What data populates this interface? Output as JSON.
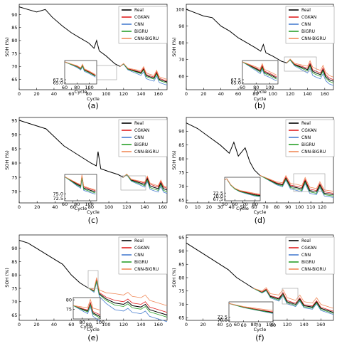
{
  "legend_colors": {
    "Real": "#000000",
    "CGKAN": "#e02020",
    "CNN": "#4a7fd0",
    "BiGRU": "#2aa02a",
    "CNN-BiGRU": "#f08a5a"
  },
  "chart_data": [
    {
      "panel": "(a)",
      "type": "line",
      "xlabel": "Cycle",
      "ylabel": "SOH (%)",
      "xlim": [
        0,
        170
      ],
      "ylim": [
        61,
        94
      ],
      "xticks": [
        0,
        20,
        40,
        60,
        80,
        100,
        120,
        140,
        160
      ],
      "yticks": [
        65,
        70,
        75,
        80,
        85,
        90
      ],
      "legend": [
        "Real",
        "CGKAN",
        "CNN",
        "BiGRU",
        "CNN-BiGRU"
      ],
      "pred_start": 116,
      "real": [
        [
          0,
          93
        ],
        [
          10,
          92
        ],
        [
          20,
          91
        ],
        [
          30,
          92
        ],
        [
          38,
          89
        ],
        [
          50,
          85.5
        ],
        [
          60,
          83
        ],
        [
          70,
          81
        ],
        [
          80,
          79
        ],
        [
          86,
          77
        ],
        [
          89,
          80
        ],
        [
          92,
          76
        ],
        [
          100,
          74
        ],
        [
          110,
          71
        ],
        [
          116,
          70
        ],
        [
          120,
          71
        ],
        [
          125,
          69
        ],
        [
          130,
          68.5
        ],
        [
          135,
          68
        ],
        [
          140,
          67.5
        ],
        [
          143,
          69
        ],
        [
          146,
          66.5
        ],
        [
          150,
          66
        ],
        [
          155,
          65.5
        ],
        [
          158,
          67.5
        ],
        [
          161,
          65
        ],
        [
          165,
          64.5
        ],
        [
          170,
          64
        ]
      ],
      "offsets": {
        "CGKAN": 0.4,
        "CNN": -1.2,
        "BiGRU": -0.4,
        "CNN-BiGRU": 1.0
      },
      "inset": {
        "xlim": [
          60,
          112
        ],
        "yticks": [
          65.0,
          67.5
        ],
        "xticks": [
          60,
          80,
          100
        ],
        "xlabel": "Cycle"
      }
    },
    {
      "panel": "(b)",
      "type": "line",
      "xlabel": "Cycle",
      "ylabel": "SOH (%)",
      "xlim": [
        0,
        170
      ],
      "ylim": [
        52,
        103
      ],
      "xticks": [
        0,
        20,
        40,
        60,
        80,
        100,
        120,
        140,
        160
      ],
      "yticks": [
        60,
        70,
        80,
        90,
        100
      ],
      "legend": [
        "Real",
        "CGKAN",
        "CNN",
        "BiGRU",
        "CNN-BiGRU"
      ],
      "pred_start": 116,
      "real": [
        [
          0,
          100
        ],
        [
          10,
          98
        ],
        [
          20,
          96
        ],
        [
          30,
          95
        ],
        [
          40,
          90
        ],
        [
          50,
          87
        ],
        [
          60,
          83
        ],
        [
          70,
          80
        ],
        [
          80,
          77
        ],
        [
          86,
          75
        ],
        [
          89,
          79
        ],
        [
          92,
          74
        ],
        [
          100,
          72
        ],
        [
          110,
          69
        ],
        [
          116,
          68
        ],
        [
          120,
          70
        ],
        [
          125,
          67
        ],
        [
          130,
          66
        ],
        [
          135,
          65
        ],
        [
          140,
          64
        ],
        [
          143,
          67
        ],
        [
          146,
          63
        ],
        [
          150,
          62
        ],
        [
          155,
          61
        ],
        [
          158,
          64
        ],
        [
          161,
          60
        ],
        [
          165,
          58
        ],
        [
          170,
          57
        ]
      ],
      "offsets": {
        "CGKAN": 1.0,
        "CNN": -2.5,
        "BiGRU": -1.0,
        "CNN-BiGRU": 2.5
      },
      "inset": {
        "xlim": [
          60,
          112
        ],
        "yticks": [
          65.0,
          67.5
        ],
        "xticks": [
          60,
          80,
          100
        ],
        "xlabel": "Cycle"
      }
    },
    {
      "panel": "(c)",
      "type": "line",
      "xlabel": "Cycle",
      "ylabel": "SOH (%)",
      "xlim": [
        0,
        165
      ],
      "ylim": [
        66,
        96
      ],
      "xticks": [
        0,
        20,
        40,
        60,
        80,
        100,
        120,
        140,
        160
      ],
      "yticks": [
        70,
        75,
        80,
        85,
        90,
        95
      ],
      "legend": [
        "Real",
        "CGKAN",
        "CNN",
        "BiGRU",
        "CNN-BiGRU"
      ],
      "pred_start": 116,
      "real": [
        [
          0,
          95
        ],
        [
          10,
          94
        ],
        [
          20,
          93
        ],
        [
          30,
          92
        ],
        [
          40,
          89
        ],
        [
          50,
          86
        ],
        [
          60,
          84
        ],
        [
          70,
          82
        ],
        [
          80,
          80
        ],
        [
          86,
          79
        ],
        [
          88,
          84
        ],
        [
          91,
          78
        ],
        [
          100,
          77
        ],
        [
          110,
          76
        ],
        [
          116,
          75
        ],
        [
          120,
          76
        ],
        [
          125,
          74
        ],
        [
          130,
          73.5
        ],
        [
          135,
          73
        ],
        [
          140,
          72.5
        ],
        [
          143,
          74.5
        ],
        [
          146,
          72
        ],
        [
          150,
          71.5
        ],
        [
          155,
          71
        ],
        [
          158,
          73
        ],
        [
          161,
          71
        ],
        [
          165,
          70.5
        ]
      ],
      "offsets": {
        "CGKAN": 0.6,
        "CNN": -1.2,
        "BiGRU": -0.6,
        "CNN-BiGRU": 1.0
      },
      "inset": {
        "xlim": [
          60,
          112
        ],
        "yticks": [
          72.5,
          75.0
        ],
        "xticks": [
          60,
          80,
          100
        ],
        "xlabel": "Cycle"
      }
    },
    {
      "panel": "(d)",
      "type": "line",
      "xlabel": "Cycle",
      "ylabel": "SOH (%)",
      "xlim": [
        0,
        130
      ],
      "ylim": [
        64,
        95
      ],
      "xticks": [
        0,
        10,
        20,
        30,
        40,
        50,
        60,
        70,
        80,
        90,
        100,
        110,
        120
      ],
      "yticks": [
        65,
        70,
        75,
        80,
        85,
        90
      ],
      "legend": [
        "Real",
        "CGKAN",
        "CNN",
        "BiGRU",
        "CNN-BiGRU"
      ],
      "pred_start": 65,
      "real": [
        [
          0,
          93
        ],
        [
          10,
          91
        ],
        [
          20,
          88
        ],
        [
          30,
          85
        ],
        [
          38,
          82
        ],
        [
          42,
          86
        ],
        [
          46,
          81
        ],
        [
          52,
          84
        ],
        [
          56,
          79
        ],
        [
          60,
          76
        ],
        [
          65,
          74
        ],
        [
          70,
          73
        ],
        [
          75,
          72
        ],
        [
          80,
          71
        ],
        [
          85,
          70.5
        ],
        [
          88,
          73
        ],
        [
          92,
          70
        ],
        [
          98,
          69.5
        ],
        [
          102,
          69
        ],
        [
          105,
          72
        ],
        [
          109,
          68.5
        ],
        [
          115,
          68
        ],
        [
          118,
          70.5
        ],
        [
          122,
          67.5
        ],
        [
          130,
          67
        ]
      ],
      "offsets": {
        "CGKAN": 0.5,
        "CNN": -1.0,
        "BiGRU": -0.5,
        "CNN-BiGRU": 1.2
      },
      "inset": {
        "xlim": [
          50,
          85
        ],
        "yticks": [
          67.5,
          70.0,
          72.5
        ],
        "xticks": [
          50,
          60,
          70,
          80
        ],
        "xlabel": "Cycle"
      }
    },
    {
      "panel": "(e)",
      "type": "line",
      "xlabel": "Cycle",
      "ylabel": "SOH (%)",
      "xlim": [
        0,
        170
      ],
      "ylim": [
        63,
        95
      ],
      "xticks": [
        0,
        20,
        40,
        60,
        80,
        100,
        120,
        140,
        160
      ],
      "yticks": [
        65,
        70,
        75,
        80,
        85,
        90
      ],
      "legend": [
        "Real",
        "CGKAN",
        "CNN",
        "BiGRU",
        "CNN-BiGRU"
      ],
      "pred_start": 80,
      "real": [
        [
          0,
          93
        ],
        [
          10,
          92
        ],
        [
          20,
          90
        ],
        [
          30,
          88
        ],
        [
          40,
          86
        ],
        [
          50,
          84
        ],
        [
          60,
          80
        ],
        [
          70,
          77
        ],
        [
          80,
          75
        ],
        [
          86,
          74
        ],
        [
          89,
          78
        ],
        [
          92,
          73
        ],
        [
          100,
          71
        ],
        [
          110,
          69.5
        ],
        [
          120,
          69
        ],
        [
          125,
          70
        ],
        [
          130,
          68.5
        ],
        [
          140,
          68
        ],
        [
          145,
          69
        ],
        [
          150,
          67
        ],
        [
          160,
          66
        ],
        [
          165,
          65.5
        ],
        [
          170,
          65
        ]
      ],
      "offsets": {
        "CGKAN": 1.0,
        "CNN": -2.5,
        "BiGRU": -0.8,
        "CNN-BiGRU": 3.5
      },
      "inset": {
        "xlim": [
          70,
          100
        ],
        "yticks": [
          75,
          80
        ],
        "xticks": [
          80,
          100
        ],
        "xlabel": "Cycle"
      }
    },
    {
      "panel": "(f)",
      "type": "line",
      "xlabel": "Cycle",
      "ylabel": "SOH (%)",
      "xlim": [
        0,
        175
      ],
      "ylim": [
        64,
        96
      ],
      "xticks": [
        0,
        20,
        40,
        60,
        80,
        100,
        120,
        140,
        160
      ],
      "yticks": [
        65,
        70,
        75,
        80,
        85,
        90,
        95
      ],
      "legend": [
        "Real",
        "CGKAN",
        "CNN",
        "BiGRU",
        "CNN-BiGRU"
      ],
      "pred_start": 80,
      "real": [
        [
          0,
          93
        ],
        [
          10,
          91
        ],
        [
          20,
          89
        ],
        [
          30,
          87
        ],
        [
          40,
          85
        ],
        [
          50,
          83
        ],
        [
          60,
          80
        ],
        [
          70,
          78
        ],
        [
          80,
          76
        ],
        [
          90,
          74.5
        ],
        [
          95,
          75.5
        ],
        [
          100,
          73
        ],
        [
          110,
          72
        ],
        [
          115,
          74
        ],
        [
          120,
          71
        ],
        [
          130,
          70
        ],
        [
          135,
          72
        ],
        [
          140,
          69.5
        ],
        [
          150,
          69
        ],
        [
          155,
          71
        ],
        [
          160,
          68.5
        ],
        [
          170,
          67.5
        ],
        [
          175,
          67
        ]
      ],
      "offsets": {
        "CGKAN": 0.4,
        "CNN": -0.8,
        "BiGRU": -0.4,
        "CNN-BiGRU": 1.5
      },
      "inset": {
        "xlim": [
          50,
          80
        ],
        "yticks": [
          70.0,
          72.5
        ],
        "xticks": [
          50,
          60,
          70,
          80
        ],
        "xlabel": ""
      }
    }
  ]
}
